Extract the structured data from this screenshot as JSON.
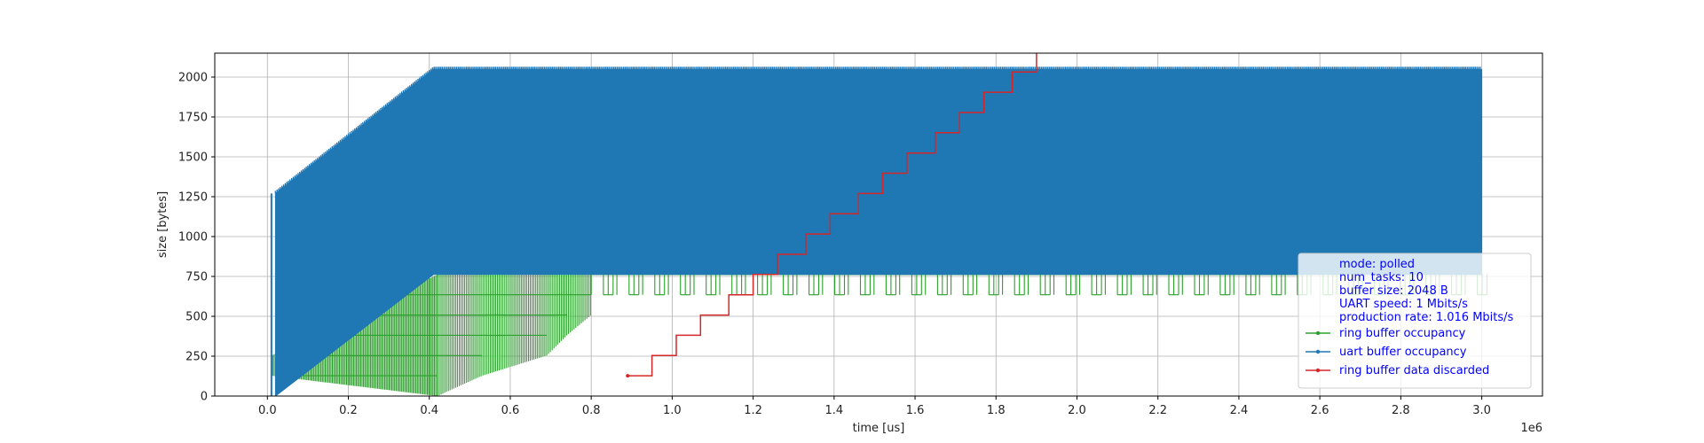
{
  "chart_data": {
    "type": "line",
    "title": "",
    "xlabel": "time [us]",
    "ylabel": "size [bytes]",
    "x_offset_label": "1e6",
    "xlim": [
      -0.13,
      3.15
    ],
    "ylim": [
      0,
      2150
    ],
    "x_ticks": [
      0.0,
      0.2,
      0.4,
      0.6,
      0.8,
      1.0,
      1.2,
      1.4,
      1.6,
      1.8,
      2.0,
      2.2,
      2.4,
      2.6,
      2.8,
      3.0
    ],
    "x_tick_labels": [
      "0.0",
      "0.2",
      "0.4",
      "0.6",
      "0.8",
      "1.0",
      "1.2",
      "1.4",
      "1.6",
      "1.8",
      "2.0",
      "2.2",
      "2.4",
      "2.6",
      "2.8",
      "3.0"
    ],
    "y_ticks": [
      0,
      250,
      500,
      750,
      1000,
      1250,
      1500,
      1750,
      2000
    ],
    "y_tick_labels": [
      "0",
      "250",
      "500",
      "750",
      "1000",
      "1250",
      "1500",
      "1750",
      "2000"
    ],
    "grid": true,
    "legend": {
      "position": "lower-right",
      "info_lines": [
        "mode: polled",
        "num_tasks: 10",
        "buffer size: 2048 B",
        "UART speed: 1 Mbits/s",
        "production rate: 1.016 Mbits/s"
      ]
    },
    "series": [
      {
        "name": "ring buffer occupancy",
        "color": "#2ca02c",
        "marker": "dot",
        "description_points": {
          "x": [
            0.01,
            0.42,
            0.53,
            0.69,
            0.74,
            0.8,
            1.0,
            1.5,
            2.0,
            2.5,
            3.0
          ],
          "y_low": [
            127,
            0,
            127,
            254,
            381,
            508,
            635,
            635,
            635,
            635,
            635
          ],
          "y_high": [
            254,
            762,
            762,
            762,
            762,
            762,
            889,
            889,
            889,
            889,
            889
          ]
        }
      },
      {
        "name": "uart buffer occupancy",
        "color": "#1f77b4",
        "marker": "dot",
        "description_points": {
          "x": [
            0.02,
            0.41,
            3.0
          ],
          "y_low": [
            0,
            762,
            762
          ],
          "y_high": [
            1270,
            2048,
            2048
          ]
        }
      },
      {
        "name": "ring buffer data discarded",
        "color": "#d62728",
        "marker": "dot",
        "steps": {
          "x": [
            0.89,
            0.95,
            1.01,
            1.07,
            1.14,
            1.2,
            1.26,
            1.33,
            1.39,
            1.46,
            1.52,
            1.58,
            1.65,
            1.71,
            1.77,
            1.84,
            1.9
          ],
          "y": [
            127,
            254,
            381,
            508,
            635,
            762,
            889,
            1016,
            1143,
            1270,
            1397,
            1524,
            1651,
            1778,
            1905,
            2032,
            2159
          ]
        }
      }
    ]
  }
}
